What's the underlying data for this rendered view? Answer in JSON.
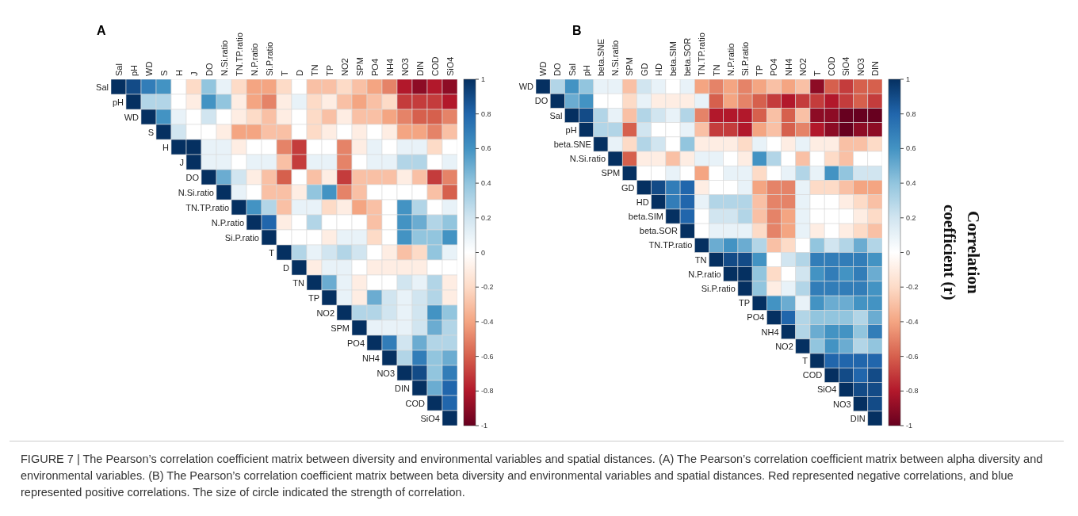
{
  "chart_data": [
    {
      "type": "heatmap",
      "title": "A",
      "categories": [
        "Sal",
        "pH",
        "WD",
        "S",
        "H",
        "J",
        "DO",
        "N.Si.ratio",
        "TN.TP.ratio",
        "N.P.ratio",
        "Si.P.ratio",
        "T",
        "D",
        "TN",
        "TP",
        "NO2",
        "SPM",
        "PO4",
        "NH4",
        "NO3",
        "DIN",
        "COD",
        "SiO4"
      ],
      "y_categories": [
        "Sal",
        "pH",
        "WD",
        "S",
        "H",
        "J",
        "DO",
        "N.Si.ratio",
        "TN.TP.ratio",
        "N.P.ratio",
        "Si.P.ratio",
        "T",
        "D",
        "TN",
        "TP",
        "NO2",
        "SPM",
        "PO4",
        "NH4",
        "NO3",
        "DIN",
        "COD",
        "SiO4"
      ],
      "clim": [
        -1,
        1
      ],
      "cticks": [
        1,
        0.8,
        0.6,
        0.4,
        0.2,
        0,
        -0.2,
        -0.4,
        -0.6,
        -0.8,
        -1
      ],
      "cells": [
        [
          1,
          0.9,
          0.7,
          0.6,
          0,
          -0.2,
          0.4,
          0.1,
          -0.2,
          -0.4,
          -0.4,
          -0.2,
          0,
          -0.3,
          -0.3,
          -0.2,
          -0.3,
          -0.4,
          -0.5,
          -0.8,
          -0.9,
          -0.8,
          -0.9
        ],
        [
          null,
          1,
          0.3,
          0.3,
          0,
          -0.1,
          0.6,
          0.4,
          -0.1,
          -0.4,
          -0.5,
          -0.1,
          0.1,
          -0.2,
          -0.1,
          -0.3,
          -0.4,
          -0.3,
          -0.2,
          -0.7,
          -0.7,
          -0.7,
          -0.8
        ],
        [
          null,
          null,
          1,
          0.6,
          0.1,
          0,
          0.2,
          0,
          -0.1,
          -0.2,
          -0.3,
          -0.1,
          0,
          -0.2,
          -0.3,
          -0.1,
          -0.3,
          -0.3,
          -0.4,
          -0.5,
          -0.6,
          -0.6,
          -0.5
        ],
        [
          null,
          null,
          null,
          1,
          0.2,
          0,
          0,
          -0.1,
          -0.4,
          -0.4,
          -0.3,
          -0.3,
          0,
          -0.2,
          -0.1,
          0,
          -0.1,
          0,
          -0.1,
          -0.4,
          -0.4,
          -0.5,
          -0.3
        ],
        [
          null,
          null,
          null,
          null,
          1,
          1,
          0.1,
          0.1,
          -0.1,
          0,
          0,
          -0.5,
          -0.7,
          0,
          0,
          -0.5,
          -0.1,
          0.1,
          0,
          0.1,
          0.1,
          -0.2,
          0
        ],
        [
          null,
          null,
          null,
          null,
          null,
          1,
          0.1,
          0.1,
          0,
          0.1,
          0.1,
          -0.3,
          -0.7,
          0.1,
          0.1,
          -0.5,
          0,
          0.1,
          0.1,
          0.3,
          0.3,
          0,
          0.1
        ],
        [
          null,
          null,
          null,
          null,
          null,
          null,
          1,
          0.5,
          0.2,
          -0.1,
          -0.3,
          -0.6,
          0,
          -0.3,
          -0.1,
          -0.7,
          -0.3,
          -0.3,
          -0.3,
          -0.1,
          -0.3,
          -0.7,
          -0.5
        ],
        [
          null,
          null,
          null,
          null,
          null,
          null,
          null,
          1,
          0.1,
          0,
          -0.3,
          -0.3,
          -0.1,
          0.4,
          0.6,
          -0.5,
          -0.3,
          0,
          0,
          0,
          0,
          -0.3,
          -0.6
        ],
        [
          null,
          null,
          null,
          null,
          null,
          null,
          null,
          null,
          1,
          0.6,
          0.3,
          -0.3,
          0.1,
          0.1,
          -0.2,
          -0.1,
          -0.4,
          -0.3,
          0,
          0.6,
          0.3,
          0,
          0.1
        ],
        [
          null,
          null,
          null,
          null,
          null,
          null,
          null,
          null,
          null,
          1,
          0.8,
          -0.1,
          0,
          0.3,
          0,
          0,
          0,
          -0.3,
          0,
          0.6,
          0.5,
          0.3,
          0.4
        ],
        [
          null,
          null,
          null,
          null,
          null,
          null,
          null,
          null,
          null,
          null,
          1,
          0,
          0,
          0,
          -0.1,
          0.1,
          0.1,
          -0.2,
          0,
          0.6,
          0.4,
          0.4,
          0.6
        ],
        [
          null,
          null,
          null,
          null,
          null,
          null,
          null,
          null,
          null,
          null,
          null,
          1,
          0.3,
          0.1,
          0.2,
          0.3,
          0.2,
          0,
          -0.1,
          -0.3,
          -0.2,
          0.4,
          0.1
        ],
        [
          null,
          null,
          null,
          null,
          null,
          null,
          null,
          null,
          null,
          null,
          null,
          null,
          1,
          -0.1,
          0.1,
          0.1,
          0,
          -0.1,
          -0.1,
          -0.1,
          -0.1,
          0,
          0
        ],
        [
          null,
          null,
          null,
          null,
          null,
          null,
          null,
          null,
          null,
          null,
          null,
          null,
          null,
          1,
          0.5,
          0.1,
          -0.1,
          0,
          0,
          0.2,
          0.1,
          0.3,
          -0.1
        ],
        [
          null,
          null,
          null,
          null,
          null,
          null,
          null,
          null,
          null,
          null,
          null,
          null,
          null,
          null,
          1,
          0.1,
          -0.1,
          0.5,
          0.2,
          0.1,
          0.2,
          0.3,
          -0.1
        ],
        [
          null,
          null,
          null,
          null,
          null,
          null,
          null,
          null,
          null,
          null,
          null,
          null,
          null,
          null,
          null,
          1,
          0.3,
          0.3,
          0.2,
          0.1,
          0.2,
          0.6,
          0.4
        ],
        [
          null,
          null,
          null,
          null,
          null,
          null,
          null,
          null,
          null,
          null,
          null,
          null,
          null,
          null,
          null,
          null,
          1,
          0.1,
          0.1,
          0.1,
          0.2,
          0.5,
          0.3
        ],
        [
          null,
          null,
          null,
          null,
          null,
          null,
          null,
          null,
          null,
          null,
          null,
          null,
          null,
          null,
          null,
          null,
          null,
          1,
          0.7,
          0.2,
          0.5,
          0.3,
          0.3
        ],
        [
          null,
          null,
          null,
          null,
          null,
          null,
          null,
          null,
          null,
          null,
          null,
          null,
          null,
          null,
          null,
          null,
          null,
          null,
          1,
          0.3,
          0.7,
          0.4,
          0.5
        ],
        [
          null,
          null,
          null,
          null,
          null,
          null,
          null,
          null,
          null,
          null,
          null,
          null,
          null,
          null,
          null,
          null,
          null,
          null,
          null,
          1,
          0.9,
          0.4,
          0.7
        ],
        [
          null,
          null,
          null,
          null,
          null,
          null,
          null,
          null,
          null,
          null,
          null,
          null,
          null,
          null,
          null,
          null,
          null,
          null,
          null,
          null,
          1,
          0.5,
          0.8
        ],
        [
          null,
          null,
          null,
          null,
          null,
          null,
          null,
          null,
          null,
          null,
          null,
          null,
          null,
          null,
          null,
          null,
          null,
          null,
          null,
          null,
          null,
          1,
          0.8
        ],
        [
          null,
          null,
          null,
          null,
          null,
          null,
          null,
          null,
          null,
          null,
          null,
          null,
          null,
          null,
          null,
          null,
          null,
          null,
          null,
          null,
          null,
          null,
          1
        ]
      ],
      "annotations": [
        "FIGURE 7 | The Pearson’s correlation coefficient matrix between diversity and environmental variables and spatial distances. (A) The Pearson’s correlation coefficient matrix between alpha diversity and environmental variables. (B) The Pearson’s correlation coefficient matrix between beta diversity and environmental variables and spatial distances. Red represented negative correlations, and blue represented positive correlations. The size of circle indicated the strength of correlation."
      ]
    },
    {
      "type": "heatmap",
      "title": "B",
      "clabel": "Correlation coefficient (r)",
      "categories": [
        "WD",
        "DO",
        "Sal",
        "pH",
        "beta.SNE",
        "N.Si.ratio",
        "SPM",
        "GD",
        "HD",
        "beta.SIM",
        "beta.SOR",
        "TN.TP.ratio",
        "TN",
        "N.P.ratio",
        "Si.P.ratio",
        "TP",
        "PO4",
        "NH4",
        "NO2",
        "T",
        "COD",
        "SiO4",
        "NO3",
        "DIN"
      ],
      "y_categories": [
        "WD",
        "DO",
        "Sal",
        "pH",
        "beta.SNE",
        "N.Si.ratio",
        "SPM",
        "GD",
        "HD",
        "beta.SIM",
        "beta.SOR",
        "TN.TP.ratio",
        "TN",
        "N.P.ratio",
        "Si.P.ratio",
        "TP",
        "PO4",
        "NH4",
        "NO2",
        "T",
        "COD",
        "SiO4",
        "NO3",
        "DIN"
      ],
      "clim": [
        -1,
        1
      ],
      "cticks": [
        1,
        0.8,
        0.6,
        0.4,
        0.2,
        0,
        -0.2,
        -0.4,
        -0.6,
        -0.8,
        -1
      ],
      "cells": [
        [
          1,
          0.3,
          0.6,
          0.4,
          0.1,
          0.1,
          -0.3,
          0.2,
          0.1,
          0,
          0.1,
          -0.4,
          -0.5,
          -0.4,
          -0.5,
          -0.4,
          -0.3,
          -0.4,
          -0.3,
          -0.9,
          -0.6,
          -0.7,
          -0.6,
          -0.6
        ],
        [
          null,
          1,
          0.5,
          0.6,
          0,
          0,
          -0.2,
          0.1,
          -0.1,
          -0.1,
          -0.1,
          0.1,
          -0.6,
          -0.4,
          -0.5,
          -0.6,
          -0.7,
          -0.8,
          -0.7,
          -0.7,
          -0.8,
          -0.7,
          -0.6,
          -0.7
        ],
        [
          null,
          null,
          1,
          0.9,
          0.3,
          0.1,
          -0.3,
          0.3,
          0.2,
          0.1,
          0.3,
          -0.5,
          -0.8,
          -0.8,
          -0.8,
          -0.6,
          -0.3,
          -0.6,
          -0.3,
          -0.9,
          -0.9,
          -1,
          -1,
          -1
        ],
        [
          null,
          null,
          null,
          1,
          0.3,
          0.3,
          -0.6,
          0.2,
          0,
          0,
          0.1,
          -0.3,
          -0.7,
          -0.7,
          -0.8,
          -0.4,
          -0.3,
          -0.6,
          -0.5,
          -0.8,
          -0.9,
          -1,
          -0.9,
          -0.9
        ],
        [
          null,
          null,
          null,
          null,
          1,
          0.1,
          -0.2,
          0.3,
          0.2,
          0,
          0.4,
          -0.1,
          -0.1,
          -0.1,
          -0.2,
          0.1,
          0,
          -0.1,
          0.1,
          -0.1,
          -0.1,
          -0.3,
          -0.3,
          -0.2
        ],
        [
          null,
          null,
          null,
          null,
          null,
          1,
          -0.6,
          -0.1,
          -0.1,
          -0.3,
          -0.1,
          0.1,
          0.1,
          0,
          -0.1,
          0.6,
          0.3,
          0,
          -0.3,
          0,
          -0.2,
          -0.3,
          0,
          0
        ],
        [
          null,
          null,
          null,
          null,
          null,
          null,
          1,
          0,
          0,
          0.1,
          0,
          -0.4,
          0,
          0.1,
          0.1,
          -0.2,
          0,
          0.1,
          0.3,
          0.1,
          0.6,
          0.4,
          0.2,
          0.2
        ],
        [
          null,
          null,
          null,
          null,
          null,
          null,
          null,
          1,
          0.9,
          0.7,
          0.8,
          -0.1,
          0,
          0,
          0.1,
          -0.4,
          -0.5,
          -0.5,
          0.1,
          -0.2,
          -0.2,
          -0.3,
          -0.4,
          -0.4
        ],
        [
          null,
          null,
          null,
          null,
          null,
          null,
          null,
          null,
          1,
          0.7,
          0.8,
          0.1,
          0.3,
          0.3,
          0.3,
          -0.3,
          -0.5,
          -0.5,
          0.1,
          0,
          0,
          -0.1,
          -0.2,
          -0.3
        ],
        [
          null,
          null,
          null,
          null,
          null,
          null,
          null,
          null,
          null,
          1,
          0.8,
          0,
          0.2,
          0.2,
          0.3,
          -0.3,
          -0.5,
          -0.4,
          0.1,
          0,
          0,
          0,
          -0.1,
          -0.2
        ],
        [
          null,
          null,
          null,
          null,
          null,
          null,
          null,
          null,
          null,
          null,
          1,
          0,
          0.1,
          0.1,
          0.1,
          -0.2,
          -0.5,
          -0.4,
          0.1,
          -0.1,
          0,
          -0.1,
          -0.2,
          -0.3
        ],
        [
          null,
          null,
          null,
          null,
          null,
          null,
          null,
          null,
          null,
          null,
          null,
          1,
          0.5,
          0.6,
          0.5,
          0.3,
          -0.3,
          -0.2,
          0,
          0.4,
          0.2,
          0.3,
          0.5,
          0.3
        ],
        [
          null,
          null,
          null,
          null,
          null,
          null,
          null,
          null,
          null,
          null,
          null,
          null,
          1,
          0.9,
          0.9,
          0.6,
          0,
          0.2,
          0.3,
          0.7,
          0.7,
          0.7,
          0.7,
          0.6
        ],
        [
          null,
          null,
          null,
          null,
          null,
          null,
          null,
          null,
          null,
          null,
          null,
          null,
          null,
          1,
          1,
          0.4,
          -0.2,
          0,
          0.2,
          0.6,
          0.7,
          0.6,
          0.7,
          0.5
        ],
        [
          null,
          null,
          null,
          null,
          null,
          null,
          null,
          null,
          null,
          null,
          null,
          null,
          null,
          null,
          1,
          0.4,
          -0.1,
          0.1,
          0.3,
          0.7,
          0.7,
          0.7,
          0.7,
          0.6
        ],
        [
          null,
          null,
          null,
          null,
          null,
          null,
          null,
          null,
          null,
          null,
          null,
          null,
          null,
          null,
          null,
          1,
          0.6,
          0.5,
          0.1,
          0.6,
          0.5,
          0.5,
          0.6,
          0.6
        ],
        [
          null,
          null,
          null,
          null,
          null,
          null,
          null,
          null,
          null,
          null,
          null,
          null,
          null,
          null,
          null,
          null,
          1,
          0.8,
          0.3,
          0.4,
          0.4,
          0.4,
          0.3,
          0.5
        ],
        [
          null,
          null,
          null,
          null,
          null,
          null,
          null,
          null,
          null,
          null,
          null,
          null,
          null,
          null,
          null,
          null,
          null,
          1,
          0.3,
          0.5,
          0.6,
          0.6,
          0.4,
          0.7
        ],
        [
          null,
          null,
          null,
          null,
          null,
          null,
          null,
          null,
          null,
          null,
          null,
          null,
          null,
          null,
          null,
          null,
          null,
          null,
          1,
          0.4,
          0.6,
          0.5,
          0.3,
          0.4
        ],
        [
          null,
          null,
          null,
          null,
          null,
          null,
          null,
          null,
          null,
          null,
          null,
          null,
          null,
          null,
          null,
          null,
          null,
          null,
          null,
          1,
          0.8,
          0.8,
          0.8,
          0.8
        ],
        [
          null,
          null,
          null,
          null,
          null,
          null,
          null,
          null,
          null,
          null,
          null,
          null,
          null,
          null,
          null,
          null,
          null,
          null,
          null,
          null,
          1,
          0.9,
          0.8,
          0.9
        ],
        [
          null,
          null,
          null,
          null,
          null,
          null,
          null,
          null,
          null,
          null,
          null,
          null,
          null,
          null,
          null,
          null,
          null,
          null,
          null,
          null,
          null,
          1,
          0.9,
          0.9
        ],
        [
          null,
          null,
          null,
          null,
          null,
          null,
          null,
          null,
          null,
          null,
          null,
          null,
          null,
          null,
          null,
          null,
          null,
          null,
          null,
          null,
          null,
          null,
          1,
          0.9
        ],
        [
          null,
          null,
          null,
          null,
          null,
          null,
          null,
          null,
          null,
          null,
          null,
          null,
          null,
          null,
          null,
          null,
          null,
          null,
          null,
          null,
          null,
          null,
          null,
          1
        ]
      ]
    }
  ]
}
